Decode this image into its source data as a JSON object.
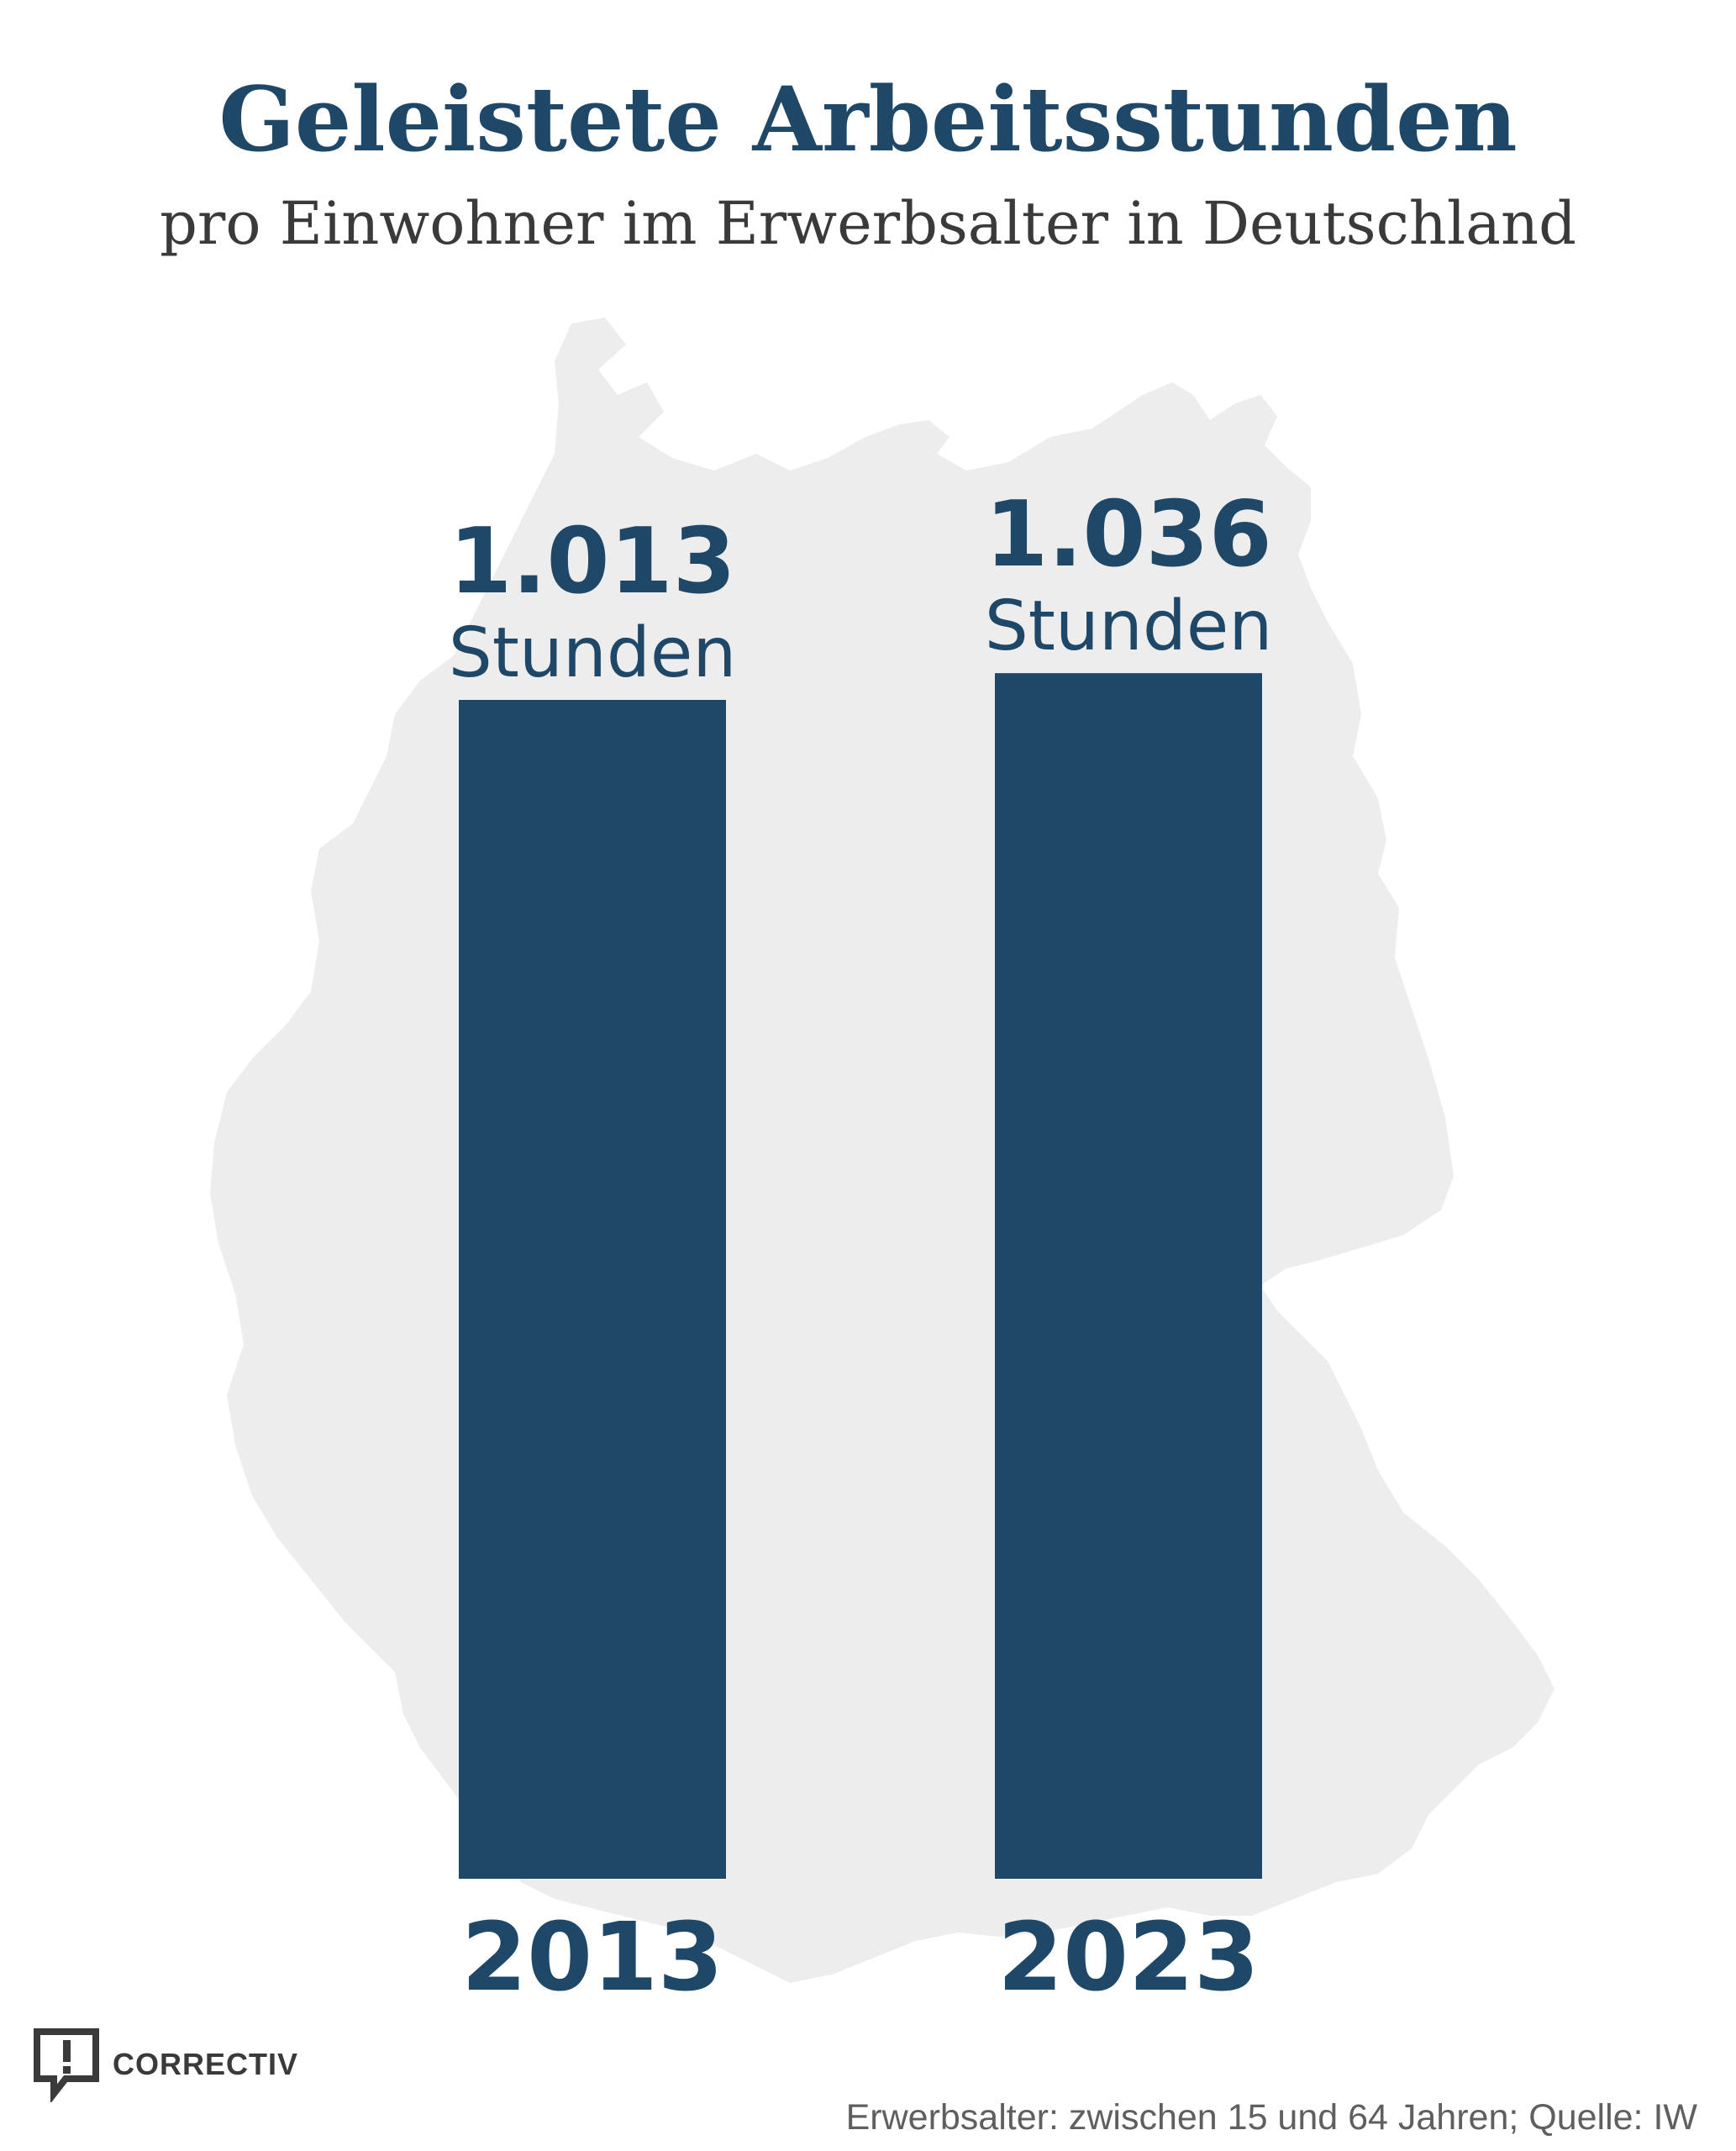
{
  "chart_data": {
    "type": "bar",
    "title": "Geleistete Arbeitsstunden",
    "subtitle": "pro Einwohner im Erwerbsalter in Deutschland",
    "categories": [
      "2013",
      "2023"
    ],
    "values": [
      1013,
      1036
    ],
    "value_labels": [
      "1.013",
      "1.036"
    ],
    "unit_label": "Stunden",
    "bar_color": "#1f4767",
    "background_shape": "germany-map-silhouette",
    "background_color": "#ededed"
  },
  "footer": {
    "note": "Erwerbsalter: zwischen 15 und 64 Jahren; Quelle: IW"
  },
  "logo": {
    "text": "CORRECTIV",
    "icon": "speech-bubble-exclamation-icon"
  }
}
